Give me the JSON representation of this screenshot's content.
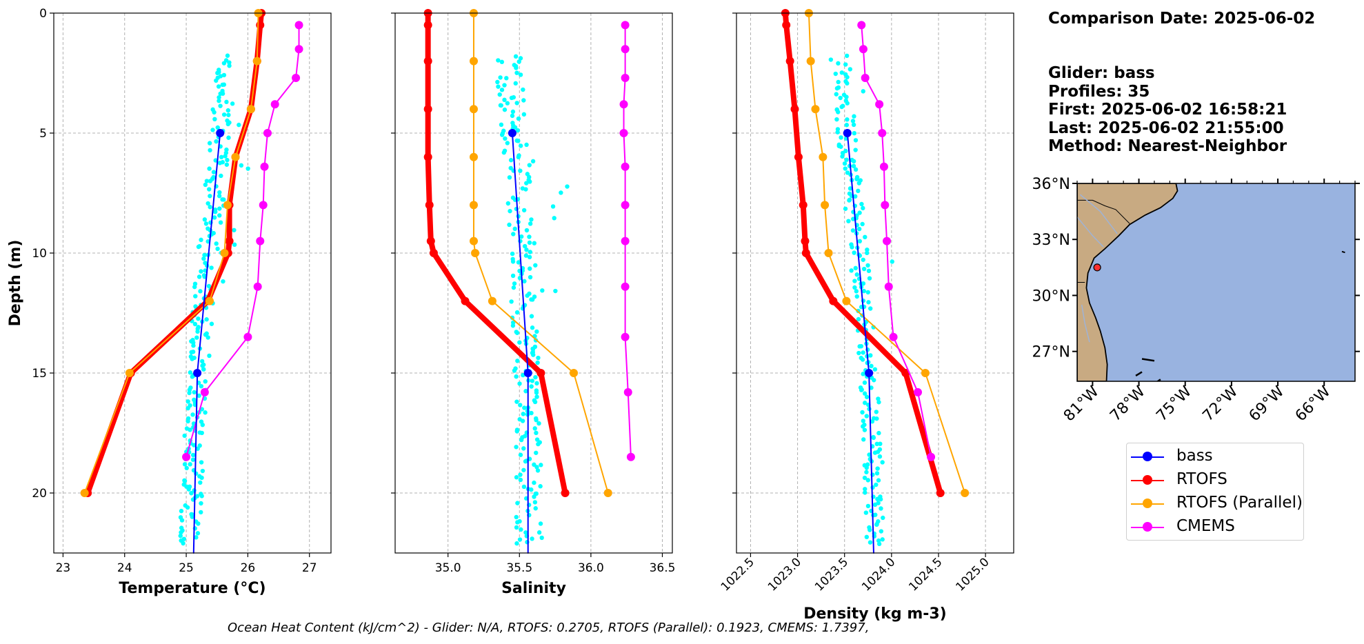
{
  "info": {
    "comparison_date": "Comparison Date: 2025-06-02",
    "glider": "Glider: bass",
    "profiles": "Profiles: 35",
    "first": "First: 2025-06-02 16:58:21",
    "last": "Last: 2025-06-02 21:55:00",
    "method": "Method: Nearest-Neighbor"
  },
  "footer": "Ocean Heat Content (kJ/cm^2) - Glider: N/A,  RTOFS: 0.2705,  RTOFS (Parallel): 0.1923,  CMEMS: 1.7397,",
  "legend": [
    {
      "label": "bass",
      "color": "#0000ff"
    },
    {
      "label": "RTOFS",
      "color": "#ff0000"
    },
    {
      "label": "RTOFS (Parallel)",
      "color": "#ffa500"
    },
    {
      "label": "CMEMS",
      "color": "#ff00ff"
    }
  ],
  "colors": {
    "bass": "#0000ff",
    "rtofs": "#ff0000",
    "rtofs_parallel": "#ffa500",
    "cmems": "#ff00ff",
    "glider_points": "#00ffff",
    "ocean": "#99b3e0",
    "land": "#c8aa82"
  },
  "map": {
    "lat_labels": [
      "36°N",
      "33°N",
      "30°N",
      "27°N"
    ],
    "lon_labels": [
      "81°W",
      "78°W",
      "75°W",
      "72°W",
      "69°W",
      "66°W"
    ],
    "glider_marker": {
      "lon": -80.7,
      "lat": 31.5
    }
  },
  "chart_data": [
    {
      "type": "line",
      "xlabel": "Temperature (°C)",
      "ylabel": "Depth (m)",
      "xlim": [
        22.85,
        27.35
      ],
      "ylim": [
        22.5,
        0
      ],
      "xticks": [
        "23",
        "24",
        "25",
        "26",
        "27"
      ],
      "yticks": [
        "0",
        "5",
        "10",
        "15",
        "20"
      ],
      "grid": true,
      "series": [
        {
          "name": "RTOFS",
          "key": "rtofs",
          "x": [
            26.22,
            26.2,
            26.15,
            26.05,
            25.8,
            25.7,
            25.7,
            25.68,
            25.35,
            24.1,
            23.4
          ],
          "y": [
            0,
            0.5,
            2,
            4,
            6,
            8,
            9.5,
            10,
            12,
            15,
            20
          ]
        },
        {
          "name": "RTOFS (Parallel)",
          "key": "rtofs_parallel",
          "x": [
            26.17,
            26.15,
            26.05,
            25.8,
            25.67,
            25.62,
            25.38,
            24.08,
            23.35
          ],
          "y": [
            0,
            2,
            4,
            6,
            8,
            10,
            12,
            15,
            20
          ]
        },
        {
          "name": "CMEMS",
          "key": "cmems",
          "x": [
            26.83,
            26.83,
            26.78,
            26.44,
            26.32,
            26.27,
            26.25,
            26.2,
            26.16,
            26.0,
            25.3,
            25.0
          ],
          "y": [
            0.5,
            1.5,
            2.7,
            3.8,
            5.0,
            6.4,
            8.0,
            9.5,
            11.4,
            13.5,
            15.8,
            18.5
          ]
        },
        {
          "name": "bass",
          "key": "bass",
          "x": [
            25.55,
            25.18,
            25.12
          ],
          "y": [
            5,
            15,
            22.5
          ],
          "markers_at": [
            5,
            15
          ]
        }
      ],
      "scatter": {
        "x_center": [
          25.65,
          25.6,
          25.5,
          25.45,
          25.35,
          25.28,
          25.2,
          25.13,
          25.05
        ],
        "y": [
          1.8,
          4,
          6,
          8,
          10,
          12,
          15,
          18,
          22
        ],
        "spread": 0.17
      }
    },
    {
      "type": "line",
      "xlabel": "Salinity",
      "ylabel": "",
      "xlim": [
        34.63,
        36.57
      ],
      "ylim": [
        22.5,
        0
      ],
      "xticks": [
        "35.0",
        "35.5",
        "36.0",
        "36.5"
      ],
      "grid": true,
      "series": [
        {
          "name": "RTOFS",
          "key": "rtofs",
          "x": [
            34.86,
            34.86,
            34.86,
            34.86,
            34.86,
            34.87,
            34.88,
            34.9,
            35.12,
            35.65,
            35.82
          ],
          "y": [
            0,
            0.5,
            2,
            4,
            6,
            8,
            9.5,
            10,
            12,
            15,
            20
          ]
        },
        {
          "name": "RTOFS (Parallel)",
          "key": "rtofs_parallel",
          "x": [
            35.18,
            35.18,
            35.18,
            35.18,
            35.18,
            35.18,
            35.19,
            35.31,
            35.88,
            36.12
          ],
          "y": [
            0,
            2,
            4,
            6,
            8,
            9.5,
            10,
            12,
            15,
            20
          ]
        },
        {
          "name": "CMEMS",
          "key": "cmems",
          "x": [
            36.24,
            36.24,
            36.24,
            36.23,
            36.23,
            36.24,
            36.24,
            36.24,
            36.24,
            36.24,
            36.26,
            36.28
          ],
          "y": [
            0.5,
            1.5,
            2.7,
            3.8,
            5.0,
            6.4,
            8.0,
            9.5,
            11.4,
            13.5,
            15.8,
            18.5
          ]
        },
        {
          "name": "bass",
          "key": "bass",
          "x": [
            35.45,
            35.56,
            35.56
          ],
          "y": [
            5,
            15,
            22.5
          ],
          "markers_at": [
            5,
            15
          ]
        }
      ],
      "scatter": {
        "x_center": [
          35.42,
          35.45,
          35.48,
          35.5,
          35.52,
          35.53,
          35.55,
          35.56,
          35.57
        ],
        "y": [
          1.8,
          4,
          6,
          8,
          10,
          12,
          15,
          18,
          22
        ],
        "spread": 0.09
      }
    },
    {
      "type": "line",
      "xlabel": "Density (kg m-3)",
      "ylabel": "",
      "xlim": [
        1022.35,
        1025.3
      ],
      "ylim": [
        22.5,
        0
      ],
      "xticks": [
        "1022.5",
        "1023.0",
        "1023.5",
        "1024.0",
        "1024.5",
        "1025.0"
      ],
      "grid": true,
      "series": [
        {
          "name": "RTOFS",
          "key": "rtofs",
          "x": [
            1022.87,
            1022.88,
            1022.92,
            1022.97,
            1023.01,
            1023.06,
            1023.08,
            1023.09,
            1023.38,
            1024.15,
            1024.52
          ],
          "y": [
            0,
            0.5,
            2,
            4,
            6,
            8,
            9.5,
            10,
            12,
            15,
            20
          ]
        },
        {
          "name": "RTOFS (Parallel)",
          "key": "rtofs_parallel",
          "x": [
            1023.12,
            1023.14,
            1023.19,
            1023.27,
            1023.29,
            1023.33,
            1023.52,
            1024.36,
            1024.78
          ],
          "y": [
            0,
            2,
            4,
            6,
            8,
            10,
            12,
            15,
            20
          ]
        },
        {
          "name": "CMEMS",
          "key": "cmems",
          "x": [
            1023.68,
            1023.7,
            1023.72,
            1023.87,
            1023.9,
            1023.92,
            1023.93,
            1023.95,
            1023.97,
            1024.02,
            1024.28,
            1024.42
          ],
          "y": [
            0.5,
            1.5,
            2.7,
            3.8,
            5.0,
            6.4,
            8.0,
            9.5,
            11.4,
            13.5,
            15.8,
            18.5
          ]
        },
        {
          "name": "bass",
          "key": "bass",
          "x": [
            1023.53,
            1023.76,
            1023.81
          ],
          "y": [
            5,
            15,
            22.5
          ],
          "markers_at": [
            5,
            15
          ]
        }
      ],
      "scatter": {
        "x_center": [
          1023.45,
          1023.5,
          1023.55,
          1023.6,
          1023.65,
          1023.7,
          1023.75,
          1023.8,
          1023.82
        ],
        "y": [
          1.8,
          4,
          6,
          8,
          10,
          12,
          15,
          18,
          22
        ],
        "spread": 0.1
      }
    }
  ]
}
